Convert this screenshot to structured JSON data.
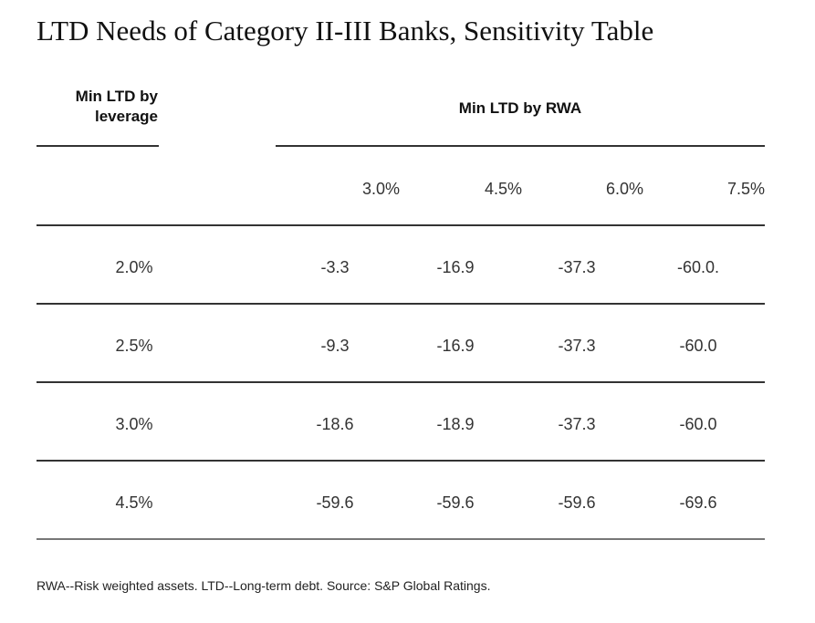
{
  "title": "LTD Needs of Category II-III Banks, Sensitivity Table",
  "row_header": [
    "Min LTD by",
    "leverage"
  ],
  "column_group_header": "Min LTD by RWA",
  "columns": [
    "3.0%",
    "4.5%",
    "6.0%",
    "7.5%"
  ],
  "rows": [
    {
      "label": "2.0%",
      "cells": [
        "-3.3",
        "-16.9",
        "-37.3",
        "-60.0."
      ]
    },
    {
      "label": "2.5%",
      "cells": [
        "-9.3",
        "-16.9",
        "-37.3",
        "-60.0"
      ]
    },
    {
      "label": "3.0%",
      "cells": [
        "-18.6",
        "-18.9",
        "-37.3",
        "-60.0"
      ]
    },
    {
      "label": "4.5%",
      "cells": [
        "-59.6",
        "-59.6",
        "-59.6",
        "-69.6"
      ]
    }
  ],
  "footnote": "RWA--Risk weighted assets. LTD--Long-term debt. Source: S&P Global Ratings."
}
